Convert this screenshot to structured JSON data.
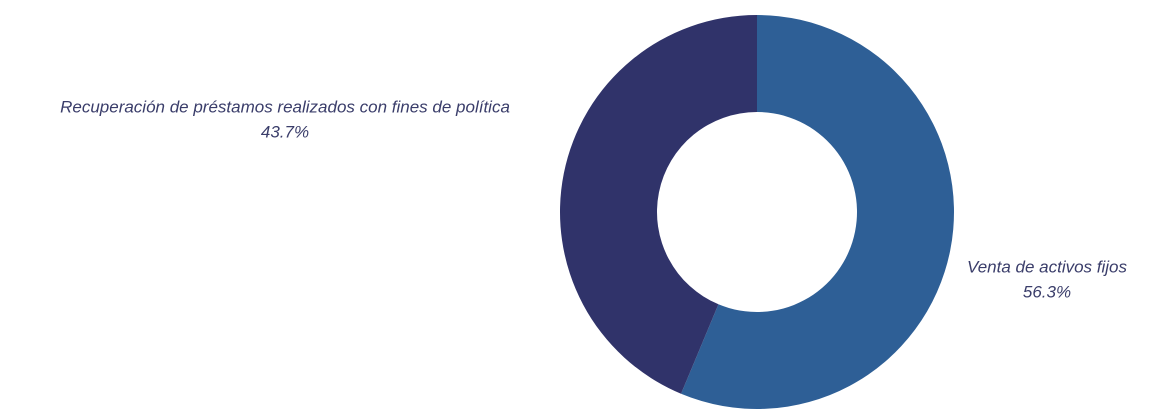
{
  "chart_data": {
    "type": "donut",
    "categories": [
      "Venta de activos fijos",
      "Recuperación de préstamos realizados con fines de política"
    ],
    "values": [
      56.3,
      43.7
    ],
    "value_labels": [
      "56.3%",
      "43.7%"
    ],
    "colors": [
      "#2e5f96",
      "#30336a"
    ]
  }
}
